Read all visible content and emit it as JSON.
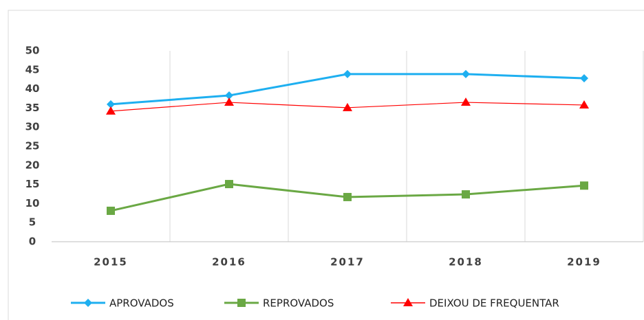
{
  "chart_data": {
    "type": "line",
    "categories": [
      "2015",
      "2016",
      "2017",
      "2018",
      "2019"
    ],
    "series": [
      {
        "name": "APROVADOS",
        "color": "#1eaff0",
        "marker": "diamond",
        "values": [
          36.0,
          38.3,
          43.9,
          43.9,
          42.8
        ]
      },
      {
        "name": "REPROVADOS",
        "color": "#6aa844",
        "marker": "square",
        "values": [
          8.1,
          15.1,
          11.7,
          12.4,
          14.7
        ]
      },
      {
        "name": "DEIXOU DE FREQUENTAR",
        "color": "#ff0000",
        "marker": "triangle",
        "values": [
          34.2,
          36.5,
          35.1,
          36.5,
          35.8
        ]
      }
    ],
    "ylim": [
      0,
      50
    ],
    "yticks": [
      0,
      5,
      10,
      15,
      20,
      25,
      30,
      35,
      40,
      45,
      50
    ],
    "legend": "bottom"
  }
}
